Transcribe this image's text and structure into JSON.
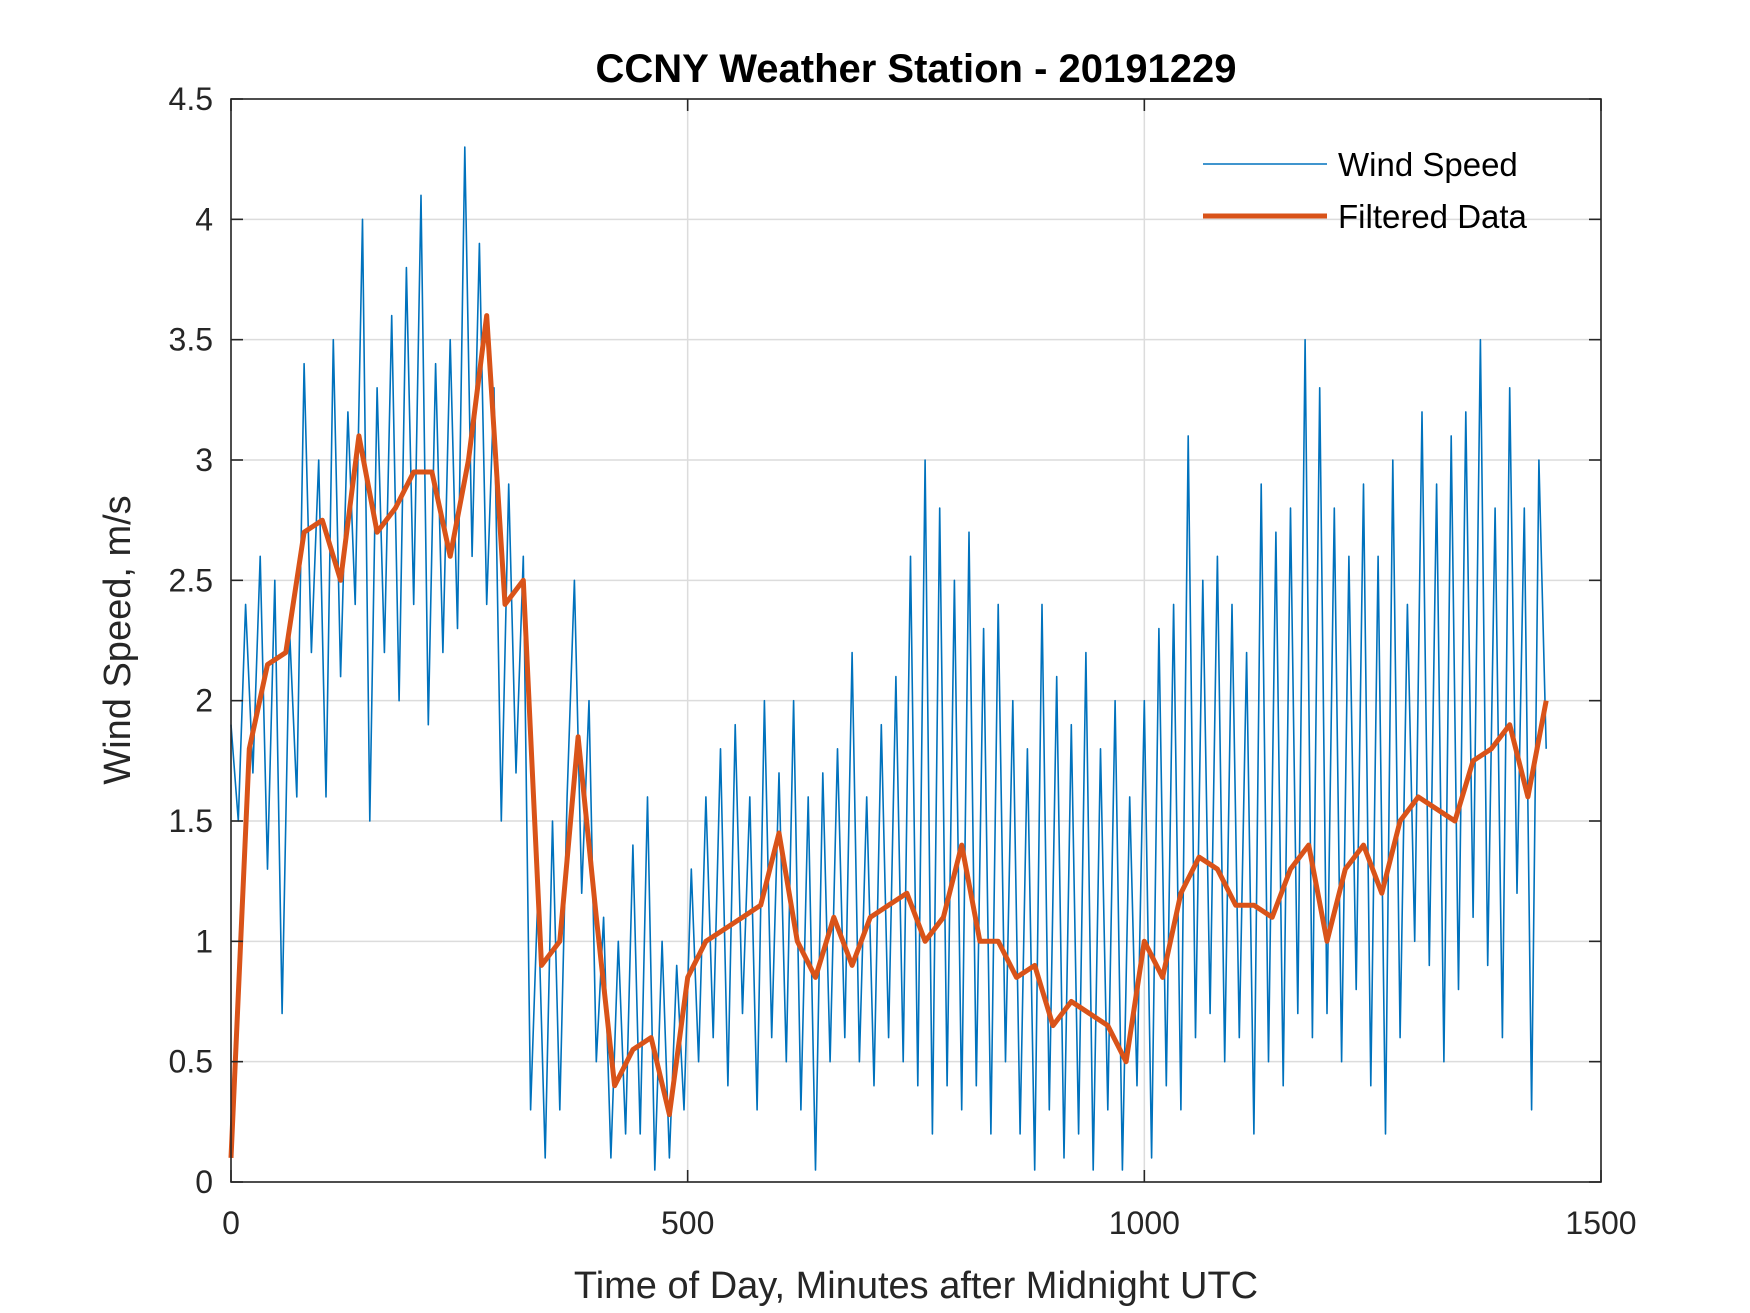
{
  "chart_data": {
    "type": "line",
    "title": "CCNY Weather Station - 20191229",
    "xlabel": "Time of Day, Minutes after Midnight UTC",
    "ylabel": "Wind Speed, m/s",
    "xlim": [
      0,
      1500
    ],
    "ylim": [
      0,
      4.5
    ],
    "xticks": [
      "0",
      "500",
      "1000",
      "1500"
    ],
    "yticks": [
      "0",
      "0.5",
      "1",
      "1.5",
      "2",
      "2.5",
      "3",
      "3.5",
      "4",
      "4.5"
    ],
    "grid": true,
    "legend_position": "top-right",
    "series": [
      {
        "name": "Wind Speed",
        "color": "#0072BD",
        "x_start": 0,
        "x_step": 8,
        "values": [
          1.9,
          1.5,
          2.4,
          1.7,
          2.6,
          1.3,
          2.5,
          0.7,
          2.3,
          1.6,
          3.4,
          2.2,
          3.0,
          1.6,
          3.5,
          2.1,
          3.2,
          2.4,
          4.0,
          1.5,
          3.3,
          2.2,
          3.6,
          2.0,
          3.8,
          2.4,
          4.1,
          1.9,
          3.4,
          2.2,
          3.5,
          2.3,
          4.3,
          2.6,
          3.9,
          2.4,
          3.3,
          1.5,
          2.9,
          1.7,
          2.6,
          0.3,
          1.2,
          0.1,
          1.5,
          0.3,
          1.6,
          2.5,
          1.2,
          2.0,
          0.5,
          1.1,
          0.1,
          1.0,
          0.2,
          1.4,
          0.2,
          1.6,
          0.05,
          1.0,
          0.1,
          0.9,
          0.3,
          1.3,
          0.5,
          1.6,
          0.6,
          1.8,
          0.4,
          1.9,
          0.7,
          1.6,
          0.3,
          2.0,
          0.6,
          1.7,
          0.5,
          2.0,
          0.3,
          1.6,
          0.05,
          1.7,
          0.5,
          1.8,
          0.6,
          2.2,
          0.5,
          1.6,
          0.4,
          1.9,
          0.6,
          2.1,
          0.5,
          2.6,
          0.4,
          3.0,
          0.2,
          2.8,
          0.4,
          2.5,
          0.3,
          2.7,
          0.4,
          2.3,
          0.2,
          2.4,
          0.5,
          2.0,
          0.2,
          1.8,
          0.05,
          2.4,
          0.3,
          2.1,
          0.1,
          1.9,
          0.2,
          2.2,
          0.05,
          1.8,
          0.3,
          2.0,
          0.05,
          1.6,
          0.4,
          2.0,
          0.1,
          2.3,
          0.4,
          2.4,
          0.3,
          3.1,
          0.6,
          2.5,
          0.7,
          2.6,
          0.5,
          2.4,
          0.6,
          2.2,
          0.2,
          2.9,
          0.5,
          2.7,
          0.4,
          2.8,
          0.7,
          3.5,
          0.6,
          3.3,
          0.7,
          2.8,
          0.5,
          2.6,
          0.8,
          2.9,
          0.4,
          2.6,
          0.2,
          3.0,
          0.6,
          2.4,
          1.0,
          3.2,
          0.9,
          2.9,
          0.5,
          3.1,
          0.8,
          3.2,
          1.1,
          3.5,
          0.9,
          2.8,
          0.6,
          3.3,
          1.2,
          2.8,
          0.3,
          3.0,
          1.8
        ]
      },
      {
        "name": "Filtered Data",
        "color": "#D95319",
        "x_start": 0,
        "x_step": 20,
        "values": [
          0.1,
          1.8,
          2.15,
          2.2,
          2.7,
          2.75,
          2.5,
          3.1,
          2.7,
          2.8,
          2.95,
          2.95,
          2.6,
          3.0,
          3.6,
          2.4,
          2.5,
          0.9,
          1.0,
          1.85,
          1.1,
          0.4,
          0.55,
          0.6,
          0.28,
          0.85,
          1.0,
          1.05,
          1.1,
          1.15,
          1.45,
          1.0,
          0.85,
          1.1,
          0.9,
          1.1,
          1.15,
          1.2,
          1.0,
          1.1,
          1.4,
          1.0,
          1.0,
          0.85,
          0.9,
          0.65,
          0.75,
          0.7,
          0.65,
          0.5,
          1.0,
          0.85,
          1.2,
          1.35,
          1.3,
          1.15,
          1.15,
          1.1,
          1.3,
          1.4,
          1.0,
          1.3,
          1.4,
          1.2,
          1.5,
          1.6,
          1.55,
          1.5,
          1.75,
          1.8,
          1.9,
          1.6,
          2.0
        ]
      }
    ]
  }
}
